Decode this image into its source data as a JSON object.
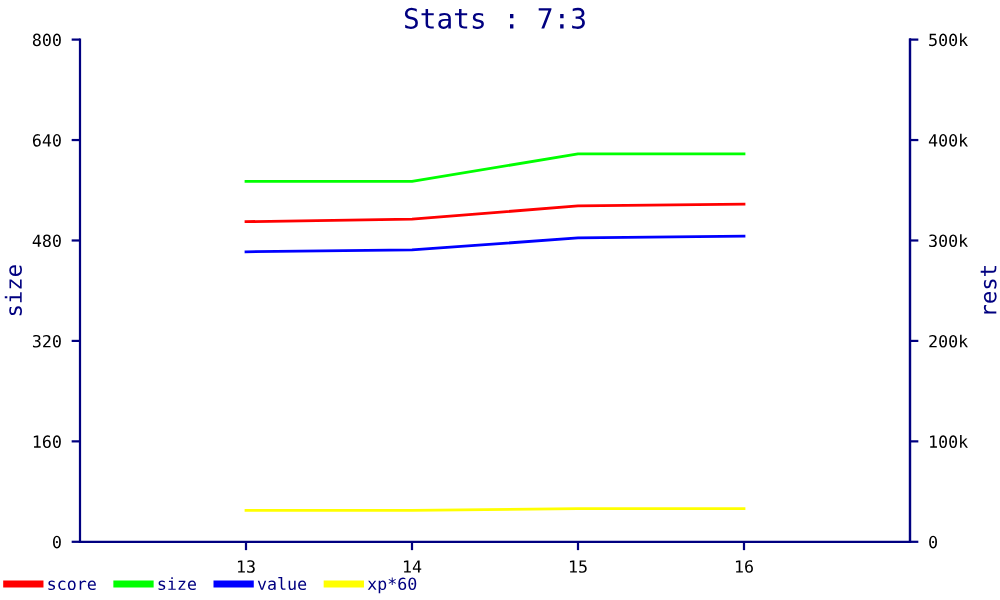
{
  "chart_data": {
    "type": "line",
    "title": "Stats : 7:3",
    "ylabel": "size",
    "y2label": "rest",
    "x": [
      13,
      14,
      15,
      16
    ],
    "xlim": [
      12,
      17
    ],
    "xticks": [
      13,
      14,
      15,
      16
    ],
    "ylim": [
      0,
      800
    ],
    "yticks": [
      0,
      160,
      320,
      480,
      640,
      800
    ],
    "y2lim": [
      0,
      500000
    ],
    "y2ticks": [
      0,
      {
        "value": 100000,
        "label": "100k"
      },
      {
        "value": 200000,
        "label": "200k"
      },
      {
        "value": 300000,
        "label": "300k"
      },
      {
        "value": 400000,
        "label": "400k"
      },
      {
        "value": 500000,
        "label": "500k"
      }
    ],
    "series": [
      {
        "name": "score",
        "color": "#ff0000",
        "values": [
          510,
          514,
          535,
          538
        ]
      },
      {
        "name": "size",
        "color": "#00ff00",
        "values": [
          574,
          574,
          618,
          618
        ]
      },
      {
        "name": "value",
        "color": "#0000ff",
        "values": [
          462,
          465,
          484,
          487
        ]
      },
      {
        "name": "xp*60",
        "color": "#ffff00",
        "values": [
          50,
          50,
          53,
          53
        ]
      }
    ],
    "grid": false,
    "legend": "bottom left",
    "marker": "none",
    "line_style": "solid"
  }
}
